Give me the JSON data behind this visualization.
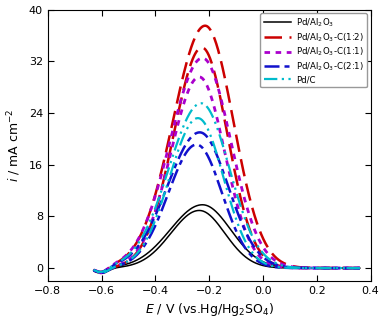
{
  "xlabel": "$E$ / V (vs.Hg/Hg$_2$SO$_4$)",
  "ylabel": "$i$ / mA cm$^{-2}$",
  "xlim": [
    -0.8,
    0.4
  ],
  "ylim": [
    -2,
    40
  ],
  "xticks": [
    -0.8,
    -0.6,
    -0.4,
    -0.2,
    0.0,
    0.2,
    0.4
  ],
  "yticks": [
    0,
    8,
    16,
    24,
    32,
    40
  ],
  "background_color": "#ffffff",
  "curve_styles": [
    {
      "color": "#000000",
      "ls": "solid",
      "lw": 1.1,
      "peak": 9.8,
      "peak_x": -0.225,
      "label": "Pd/Al$_2$O$_3$"
    },
    {
      "color": "#cc0000",
      "ls": "dashed",
      "lw": 1.8,
      "peak": 37.5,
      "peak_x": -0.215,
      "label": "Pd/Al$_2$O$_3$-C(1:2)"
    },
    {
      "color": "#aa00cc",
      "ls": "dotted",
      "lw": 2.0,
      "peak": 32.5,
      "peak_x": -0.225,
      "label": "Pd/Al$_2$O$_3$-C(1:1)"
    },
    {
      "color": "#0000cc",
      "ls": "dashdot",
      "lw": 1.8,
      "peak": 21.0,
      "peak_x": -0.235,
      "label": "Pd/Al$_2$O$_3$-C(2:1)"
    },
    {
      "color": "#00bbcc",
      "ls": "dashdot",
      "lw": 1.6,
      "peak": 25.5,
      "peak_x": -0.23,
      "label": "Pd/C"
    }
  ],
  "linestyle_map": {
    "solid": [
      1,
      0
    ],
    "dashed": [
      7,
      3
    ],
    "dotted": [
      2,
      2
    ],
    "dashdot": [
      6,
      2,
      2,
      2
    ],
    "dashdotdot": [
      6,
      2,
      1,
      2,
      1,
      2
    ]
  }
}
